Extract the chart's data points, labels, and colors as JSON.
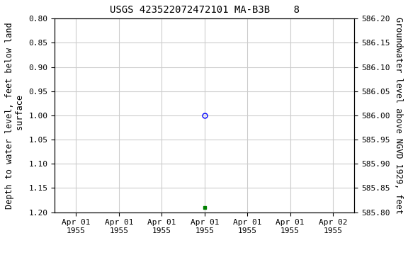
{
  "title": "USGS 423522072472101 MA-B3B    8",
  "ylabel_left": "Depth to water level, feet below land\n surface",
  "ylabel_right": "Groundwater level above NGVD 1929, feet",
  "ylim_left": [
    0.8,
    1.2
  ],
  "ylim_right": [
    585.8,
    586.2
  ],
  "yticks_left": [
    0.8,
    0.85,
    0.9,
    0.95,
    1.0,
    1.05,
    1.1,
    1.15,
    1.2
  ],
  "yticks_right": [
    585.8,
    585.85,
    585.9,
    585.95,
    586.0,
    586.05,
    586.1,
    586.15,
    586.2
  ],
  "data_point_open_x": 3,
  "data_point_open_y": 1.0,
  "data_point_approved_x": 3,
  "data_point_approved_y": 1.19,
  "xlim": [
    -0.5,
    6.5
  ],
  "xtick_positions": [
    0,
    1,
    2,
    3,
    4,
    5,
    6
  ],
  "xtick_labels": [
    "Apr 01\n1955",
    "Apr 01\n1955",
    "Apr 01\n1955",
    "Apr 01\n1955",
    "Apr 01\n1955",
    "Apr 01\n1955",
    "Apr 02\n1955"
  ],
  "open_marker_color": "blue",
  "approved_marker_color": "green",
  "grid_color": "#cccccc",
  "background_color": "white",
  "legend_color": "green",
  "title_fontsize": 10,
  "axis_label_fontsize": 8.5,
  "tick_fontsize": 8
}
